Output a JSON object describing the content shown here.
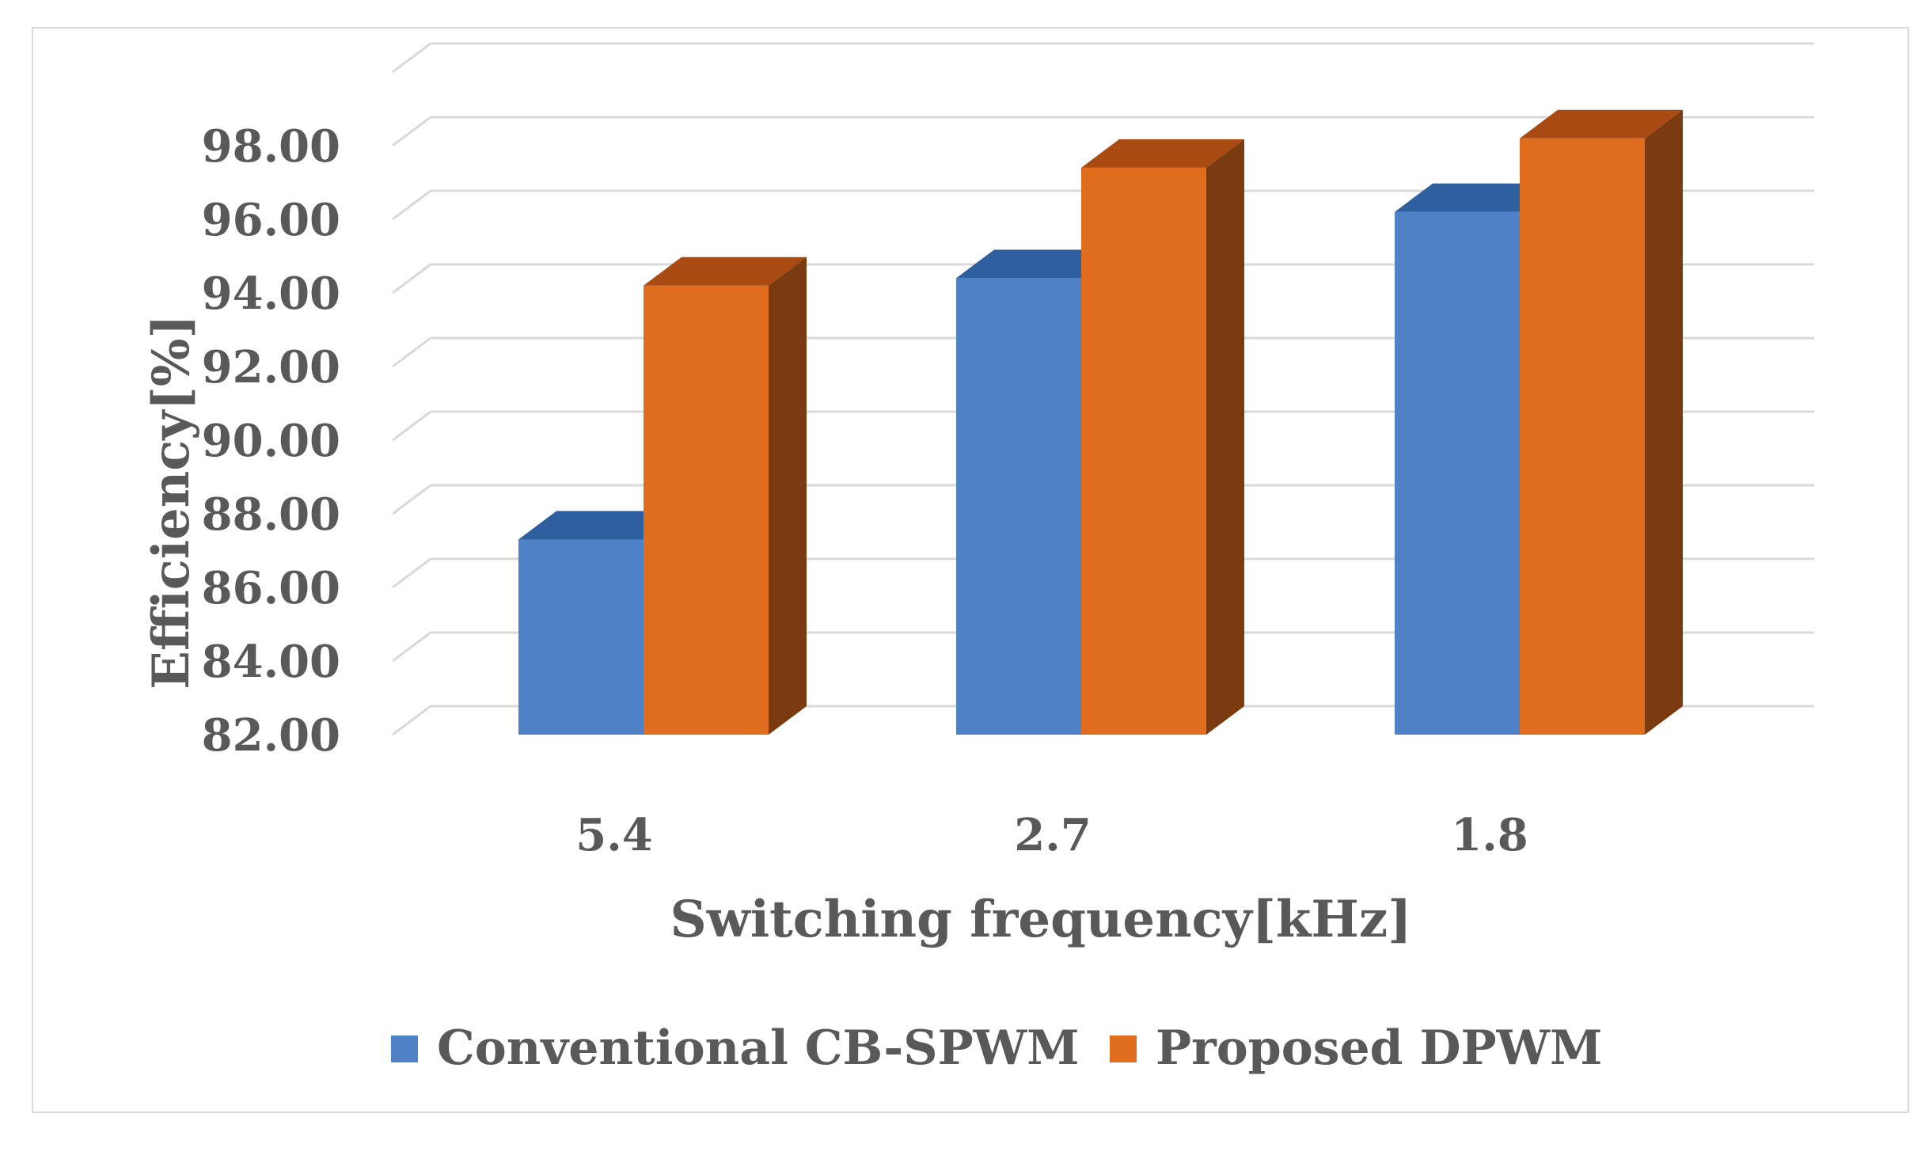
{
  "chart_data": {
    "type": "bar",
    "categories": [
      "5.4",
      "2.7",
      "1.8"
    ],
    "series": [
      {
        "name": "Conventional CB-SPWM",
        "values": [
          87.3,
          94.4,
          96.2
        ],
        "color": "#4f81c7",
        "top_color": "#2e5f9e"
      },
      {
        "name": "Proposed DPWM",
        "values": [
          94.2,
          97.4,
          98.2
        ],
        "color": "#e06c1e",
        "top_color": "#a84a12",
        "side_color": "#7a3b10"
      }
    ],
    "yticks": [
      "82.00",
      "84.00",
      "86.00",
      "88.00",
      "90.00",
      "92.00",
      "94.00",
      "96.00",
      "98.00"
    ],
    "ylim": [
      82,
      100
    ],
    "xlabel": "Switching frequency[kHz]",
    "ylabel": "Efficiency[%]",
    "grid": true,
    "legend_position": "bottom",
    "gridline_color": "#d9d9d9",
    "text_color": "#595959"
  }
}
